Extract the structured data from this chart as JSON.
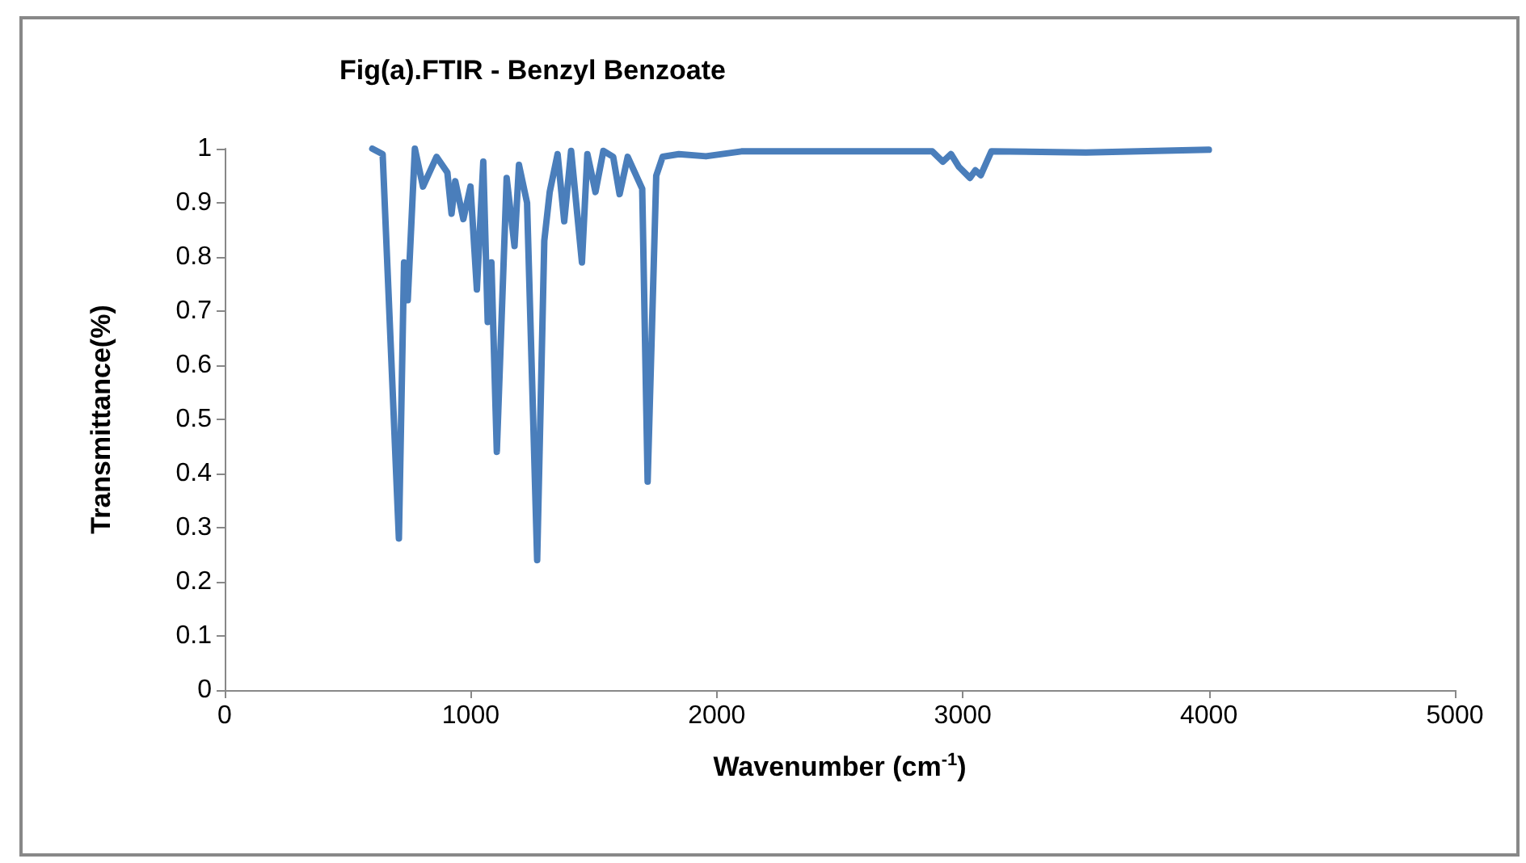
{
  "chart_data": {
    "type": "line",
    "title": "Fig(a).FTIR - Benzyl Benzoate",
    "xlabel": "Wavenumber (cm$^{-1}$)",
    "ylabel": "Transmittance(%)",
    "xlim": [
      0,
      5000
    ],
    "xticks": [
      0,
      1000,
      2000,
      3000,
      4000,
      5000
    ],
    "ylim": [
      0,
      1
    ],
    "yticks": [
      0,
      0.1,
      0.2,
      0.3,
      0.4,
      0.5,
      0.6,
      0.7,
      0.8,
      0.9,
      1
    ],
    "marker": "none",
    "line_style": "solid",
    "series": [
      {
        "color": "#4a7ebb",
        "x": [
          600,
          642,
          708,
          729,
          744,
          773,
          806,
          861,
          905,
          922,
          937,
          970,
          999,
          1025,
          1051,
          1069,
          1084,
          1106,
          1146,
          1178,
          1196,
          1229,
          1270,
          1299,
          1321,
          1353,
          1380,
          1408,
          1452,
          1474,
          1507,
          1539,
          1579,
          1605,
          1638,
          1697,
          1719,
          1754,
          1780,
          1846,
          1956,
          2100,
          2500,
          2876,
          2919,
          2952,
          2985,
          3029,
          3051,
          3073,
          3116,
          3500,
          4000
        ],
        "values": [
          1.0,
          0.99,
          0.28,
          0.79,
          0.72,
          1.0,
          0.93,
          0.985,
          0.956,
          0.88,
          0.94,
          0.87,
          0.93,
          0.74,
          0.976,
          0.68,
          0.79,
          0.44,
          0.946,
          0.82,
          0.97,
          0.9,
          0.24,
          0.83,
          0.92,
          0.99,
          0.866,
          0.996,
          0.79,
          0.99,
          0.92,
          0.996,
          0.985,
          0.916,
          0.985,
          0.926,
          0.385,
          0.95,
          0.985,
          0.99,
          0.986,
          0.995,
          0.995,
          0.995,
          0.976,
          0.99,
          0.966,
          0.946,
          0.96,
          0.951,
          0.995,
          0.993,
          0.998
        ]
      }
    ]
  }
}
